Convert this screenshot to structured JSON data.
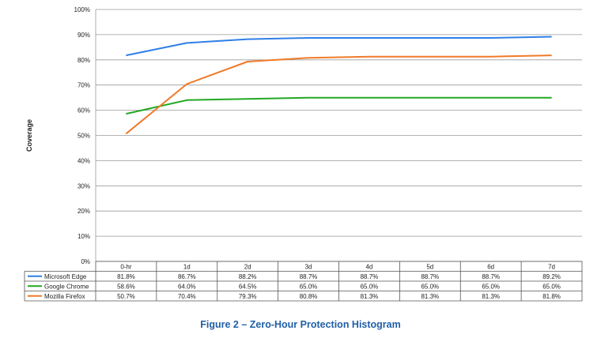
{
  "chart_data": {
    "type": "line",
    "ylabel": "Coverage",
    "ylim": [
      0,
      100
    ],
    "y_ticks": [
      "0%",
      "10%",
      "20%",
      "30%",
      "40%",
      "50%",
      "60%",
      "70%",
      "80%",
      "90%",
      "100%"
    ],
    "categories": [
      "0-hr",
      "1d",
      "2d",
      "3d",
      "4d",
      "5d",
      "6d",
      "7d"
    ],
    "grid": true,
    "legend": "table-below",
    "series": [
      {
        "name": "Microsoft Edge",
        "color": "#2f7fe8",
        "values": [
          81.8,
          86.7,
          88.2,
          88.7,
          88.7,
          88.7,
          88.7,
          89.2
        ],
        "labels": [
          "81.8%",
          "86.7%",
          "88.2%",
          "88.7%",
          "88.7%",
          "88.7%",
          "88.7%",
          "89.2%"
        ]
      },
      {
        "name": "Google Chrome",
        "color": "#22a822",
        "values": [
          58.6,
          64.0,
          64.5,
          65.0,
          65.0,
          65.0,
          65.0,
          65.0
        ],
        "labels": [
          "58.6%",
          "64.0%",
          "64.5%",
          "65.0%",
          "65.0%",
          "65.0%",
          "65.0%",
          "65.0%"
        ]
      },
      {
        "name": "Mozilla Firefox",
        "color": "#f07a2a",
        "values": [
          50.7,
          70.4,
          79.3,
          80.8,
          81.3,
          81.3,
          81.3,
          81.8
        ],
        "labels": [
          "50.7%",
          "70.4%",
          "79.3%",
          "80.8%",
          "81.3%",
          "81.3%",
          "81.3%",
          "81.8%"
        ]
      }
    ]
  },
  "caption": "Figure 2 – Zero-Hour Protection Histogram"
}
